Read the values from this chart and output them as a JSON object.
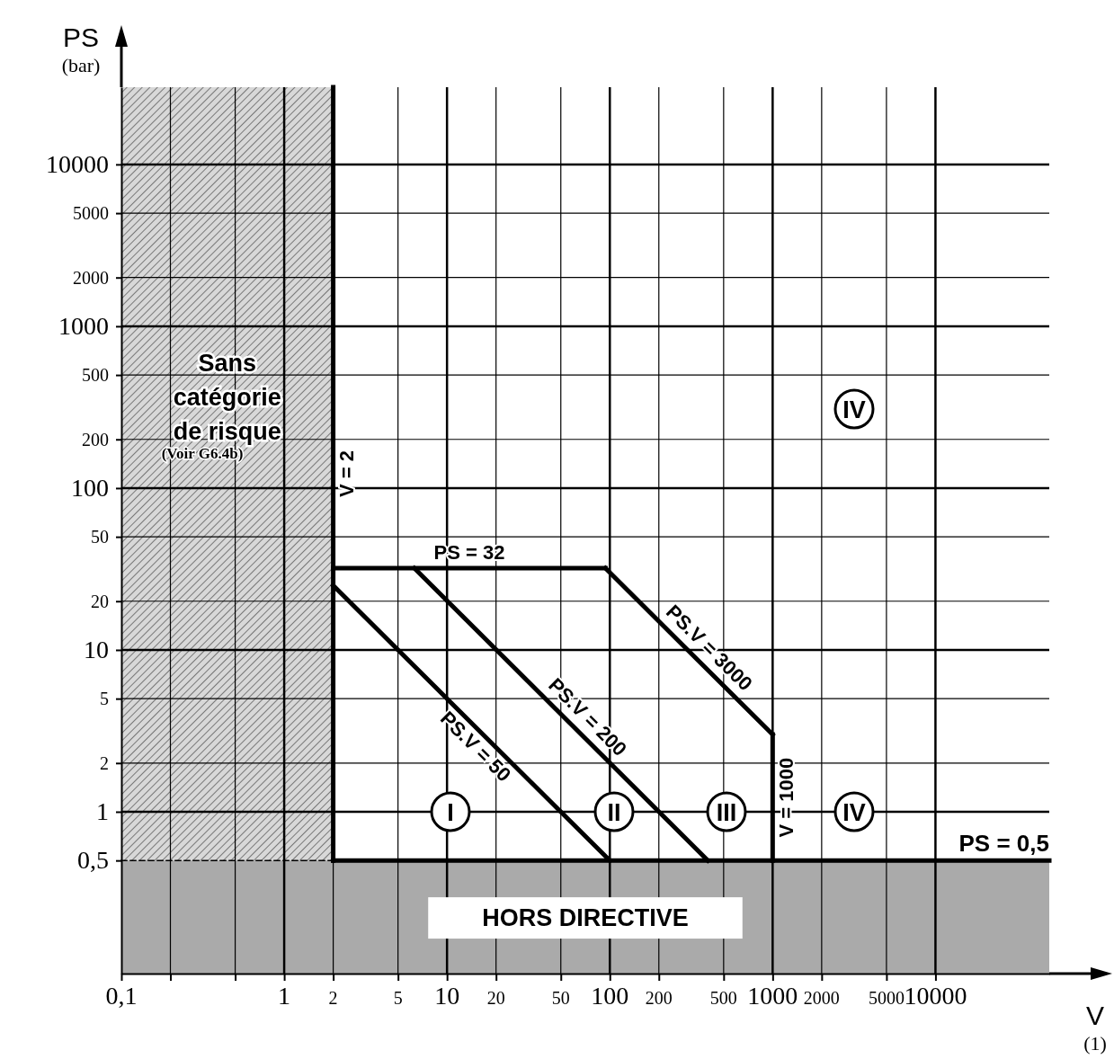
{
  "chart_data": {
    "type": "line",
    "xlabel": "V (1)",
    "ylabel": "PS (bar)",
    "log": "xy",
    "grid": true,
    "xlim": [
      0.1,
      50000
    ],
    "ylim": [
      0.1,
      30000
    ],
    "xticks": [
      {
        "value": 0.1,
        "label": "0,1"
      },
      {
        "value": 0.2,
        "label": null
      },
      {
        "value": 0.5,
        "label": null
      },
      1,
      2,
      5,
      10,
      20,
      50,
      100,
      200,
      500,
      1000,
      2000,
      5000,
      10000
    ],
    "yticks": [
      {
        "value": 0.5,
        "label": "0,5"
      },
      1,
      2,
      5,
      10,
      20,
      50,
      100,
      200,
      500,
      1000,
      2000,
      5000,
      10000
    ],
    "series": [
      {
        "name": "V = 2",
        "color": "#000000",
        "x": [
          2,
          2
        ],
        "values": [
          0.5,
          30000
        ]
      },
      {
        "name": "PS = 32",
        "color": "#000000",
        "x": [
          2,
          94
        ],
        "values": [
          32,
          32
        ]
      },
      {
        "name": "PS.V = 50",
        "color": "#000000",
        "x": [
          2,
          100
        ],
        "values": [
          25,
          0.5
        ]
      },
      {
        "name": "PS.V = 200",
        "color": "#000000",
        "x": [
          6.3,
          400
        ],
        "values": [
          32,
          0.5
        ]
      },
      {
        "name": "PS.V = 3000",
        "color": "#000000",
        "x": [
          94,
          1000
        ],
        "values": [
          32,
          3
        ]
      },
      {
        "name": "V = 1000",
        "color": "#000000",
        "x": [
          1000,
          1000
        ],
        "values": [
          3,
          0.5
        ]
      },
      {
        "name": "PS = 0,5",
        "color": "#000000",
        "x": [
          2,
          50000
        ],
        "values": [
          0.5,
          0.5
        ]
      },
      {
        "color": "#000000",
        "x": [
          0.1,
          2
        ],
        "values": [
          0.5,
          0.5
        ],
        "line_style": "dashed"
      }
    ],
    "bands": [
      {
        "axis": "x",
        "from": 0.1,
        "to": 2,
        "label": "Sans catégorie de risque",
        "color": "#777777"
      },
      {
        "axis": "y",
        "from": 0.1,
        "to": 0.5,
        "label": "HORS DIRECTIVE",
        "color": "#aaaaaa"
      }
    ],
    "annotations": [
      "I",
      "II",
      "III",
      "IV",
      "IV",
      "(Voir G6.4b)"
    ]
  }
}
